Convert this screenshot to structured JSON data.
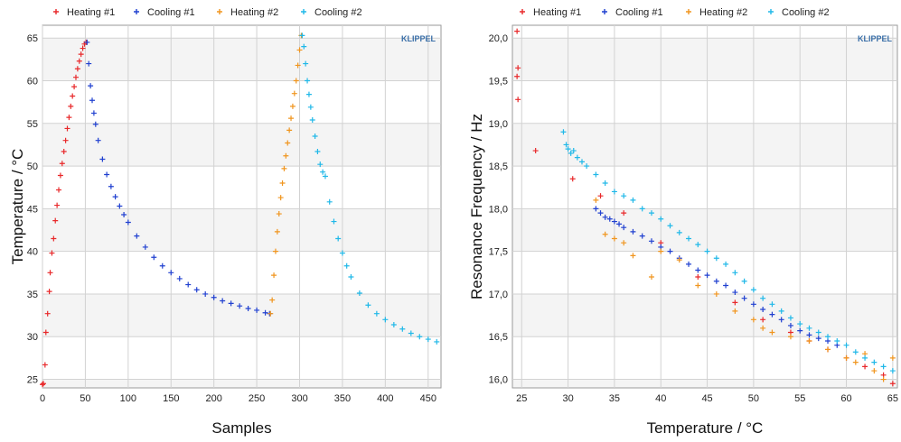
{
  "chart_data": [
    {
      "type": "scatter",
      "brand": "KLIPPEL",
      "xlabel": "Samples",
      "ylabel": "Temperature / °C",
      "xlim": [
        0,
        465
      ],
      "ylim": [
        24,
        66.5
      ],
      "xticks": [
        "0",
        "50",
        "100",
        "150",
        "200",
        "250",
        "300",
        "350",
        "400",
        "450"
      ],
      "yticks": [
        "25",
        "30",
        "35",
        "40",
        "45",
        "50",
        "55",
        "60",
        "65"
      ],
      "grid": true,
      "legend": "top",
      "series": [
        {
          "name": "Heating #1",
          "color": "#e8282a",
          "x": [
            0,
            1,
            3,
            4,
            6,
            8,
            9,
            11,
            13,
            15,
            17,
            19,
            21,
            23,
            25,
            27,
            29,
            31,
            33,
            35,
            37,
            39,
            41,
            43,
            45,
            47,
            49,
            51
          ],
          "y": [
            24.4,
            24.5,
            26.7,
            30.5,
            32.7,
            35.3,
            37.5,
            39.8,
            41.5,
            43.6,
            45.4,
            47.2,
            48.9,
            50.3,
            51.7,
            53.0,
            54.4,
            55.7,
            57.0,
            58.2,
            59.3,
            60.4,
            61.4,
            62.3,
            63.1,
            63.8,
            64.3,
            64.5
          ]
        },
        {
          "name": "Cooling #1",
          "color": "#2040d0",
          "x": [
            52,
            54,
            56,
            58,
            60,
            62,
            65,
            70,
            75,
            80,
            85,
            90,
            95,
            100,
            110,
            120,
            130,
            140,
            150,
            160,
            170,
            180,
            190,
            200,
            210,
            220,
            230,
            240,
            250,
            260,
            265
          ],
          "y": [
            64.5,
            62.0,
            59.4,
            57.7,
            56.2,
            54.9,
            53.0,
            50.8,
            49.0,
            47.6,
            46.4,
            45.3,
            44.3,
            43.4,
            41.8,
            40.5,
            39.3,
            38.3,
            37.5,
            36.8,
            36.1,
            35.5,
            35.0,
            34.6,
            34.2,
            33.9,
            33.6,
            33.3,
            33.1,
            32.8,
            32.7
          ]
        },
        {
          "name": "Heating #2",
          "color": "#f0951e",
          "x": [
            266,
            268,
            270,
            272,
            274,
            276,
            278,
            280,
            282,
            284,
            286,
            288,
            290,
            292,
            294,
            296,
            298,
            300,
            302
          ],
          "y": [
            32.7,
            34.3,
            37.2,
            40.0,
            42.3,
            44.4,
            46.3,
            48.0,
            49.7,
            51.2,
            52.7,
            54.2,
            55.6,
            57.0,
            58.5,
            60.0,
            61.8,
            63.6,
            65.3
          ]
        },
        {
          "name": "Cooling #2",
          "color": "#20b8e8",
          "x": [
            303,
            305,
            307,
            309,
            311,
            313,
            315,
            318,
            321,
            324,
            327,
            330,
            335,
            340,
            345,
            350,
            355,
            360,
            370,
            380,
            390,
            400,
            410,
            420,
            430,
            440,
            450,
            460
          ],
          "y": [
            65.3,
            64.0,
            62.0,
            60.0,
            58.4,
            56.9,
            55.4,
            53.5,
            51.7,
            50.2,
            49.3,
            48.8,
            45.8,
            43.5,
            41.5,
            39.8,
            38.3,
            37.0,
            35.1,
            33.7,
            32.7,
            32.0,
            31.4,
            30.9,
            30.4,
            30.0,
            29.7,
            29.4
          ]
        }
      ]
    },
    {
      "type": "scatter",
      "brand": "KLIPPEL",
      "xlabel": "Temperature / °C",
      "ylabel": "Resonance Frequency / Hz",
      "xlim": [
        24,
        65.5
      ],
      "ylim": [
        15.9,
        20.15
      ],
      "xticks": [
        "25",
        "30",
        "35",
        "40",
        "45",
        "50",
        "55",
        "60",
        "65"
      ],
      "yticks": [
        "16,0",
        "16,5",
        "17,0",
        "17,5",
        "18,0",
        "18,5",
        "19,0",
        "19,5",
        "20,0"
      ],
      "grid": true,
      "legend": "top",
      "series": [
        {
          "name": "Heating #1",
          "color": "#e8282a",
          "x": [
            24.5,
            24.6,
            24.5,
            24.6,
            26.5,
            30.5,
            33.5,
            36,
            40,
            44,
            48,
            51,
            54,
            56,
            58,
            60,
            62,
            64,
            65
          ],
          "y": [
            20.08,
            19.65,
            19.55,
            19.28,
            18.68,
            18.35,
            18.15,
            17.95,
            17.6,
            17.2,
            16.9,
            16.7,
            16.55,
            16.45,
            16.35,
            16.25,
            16.15,
            16.05,
            15.95
          ]
        },
        {
          "name": "Cooling #1",
          "color": "#2040d0",
          "x": [
            33,
            33.5,
            34,
            34.5,
            35,
            35.5,
            36,
            37,
            38,
            39,
            40,
            41,
            42,
            43,
            44,
            45,
            46,
            47,
            48,
            49,
            50,
            51,
            52,
            53,
            54,
            55,
            56,
            57,
            58,
            59
          ],
          "y": [
            18.0,
            17.95,
            17.9,
            17.88,
            17.85,
            17.82,
            17.78,
            17.73,
            17.68,
            17.62,
            17.55,
            17.5,
            17.42,
            17.35,
            17.28,
            17.22,
            17.15,
            17.1,
            17.02,
            16.95,
            16.88,
            16.82,
            16.76,
            16.7,
            16.63,
            16.57,
            16.52,
            16.48,
            16.45,
            16.4
          ]
        },
        {
          "name": "Heating #2",
          "color": "#f0951e",
          "x": [
            33,
            34,
            35,
            36,
            37,
            39,
            40,
            42,
            44,
            46,
            48,
            50,
            51,
            52,
            54,
            56,
            58,
            60,
            61,
            62,
            63,
            64,
            65
          ],
          "y": [
            18.1,
            17.7,
            17.65,
            17.6,
            17.45,
            17.2,
            17.5,
            17.4,
            17.1,
            17.0,
            16.8,
            16.7,
            16.6,
            16.55,
            16.5,
            16.45,
            16.35,
            16.25,
            16.2,
            16.3,
            16.1,
            16.0,
            16.25
          ]
        },
        {
          "name": "Cooling #2",
          "color": "#20b8e8",
          "x": [
            29.5,
            29.8,
            30,
            30.3,
            30.6,
            31,
            31.5,
            32,
            33,
            34,
            35,
            36,
            37,
            38,
            39,
            40,
            41,
            42,
            43,
            44,
            45,
            46,
            47,
            48,
            49,
            50,
            51,
            52,
            53,
            54,
            55,
            56,
            57,
            58,
            59,
            60,
            61,
            62,
            63,
            64,
            65
          ],
          "y": [
            18.9,
            18.75,
            18.7,
            18.65,
            18.68,
            18.6,
            18.55,
            18.5,
            18.4,
            18.3,
            18.2,
            18.15,
            18.1,
            18.0,
            17.95,
            17.88,
            17.8,
            17.72,
            17.65,
            17.58,
            17.5,
            17.42,
            17.35,
            17.25,
            17.15,
            17.05,
            16.95,
            16.88,
            16.8,
            16.72,
            16.65,
            16.6,
            16.55,
            16.5,
            16.45,
            16.4,
            16.32,
            16.25,
            16.2,
            16.15,
            16.1
          ]
        }
      ]
    }
  ]
}
